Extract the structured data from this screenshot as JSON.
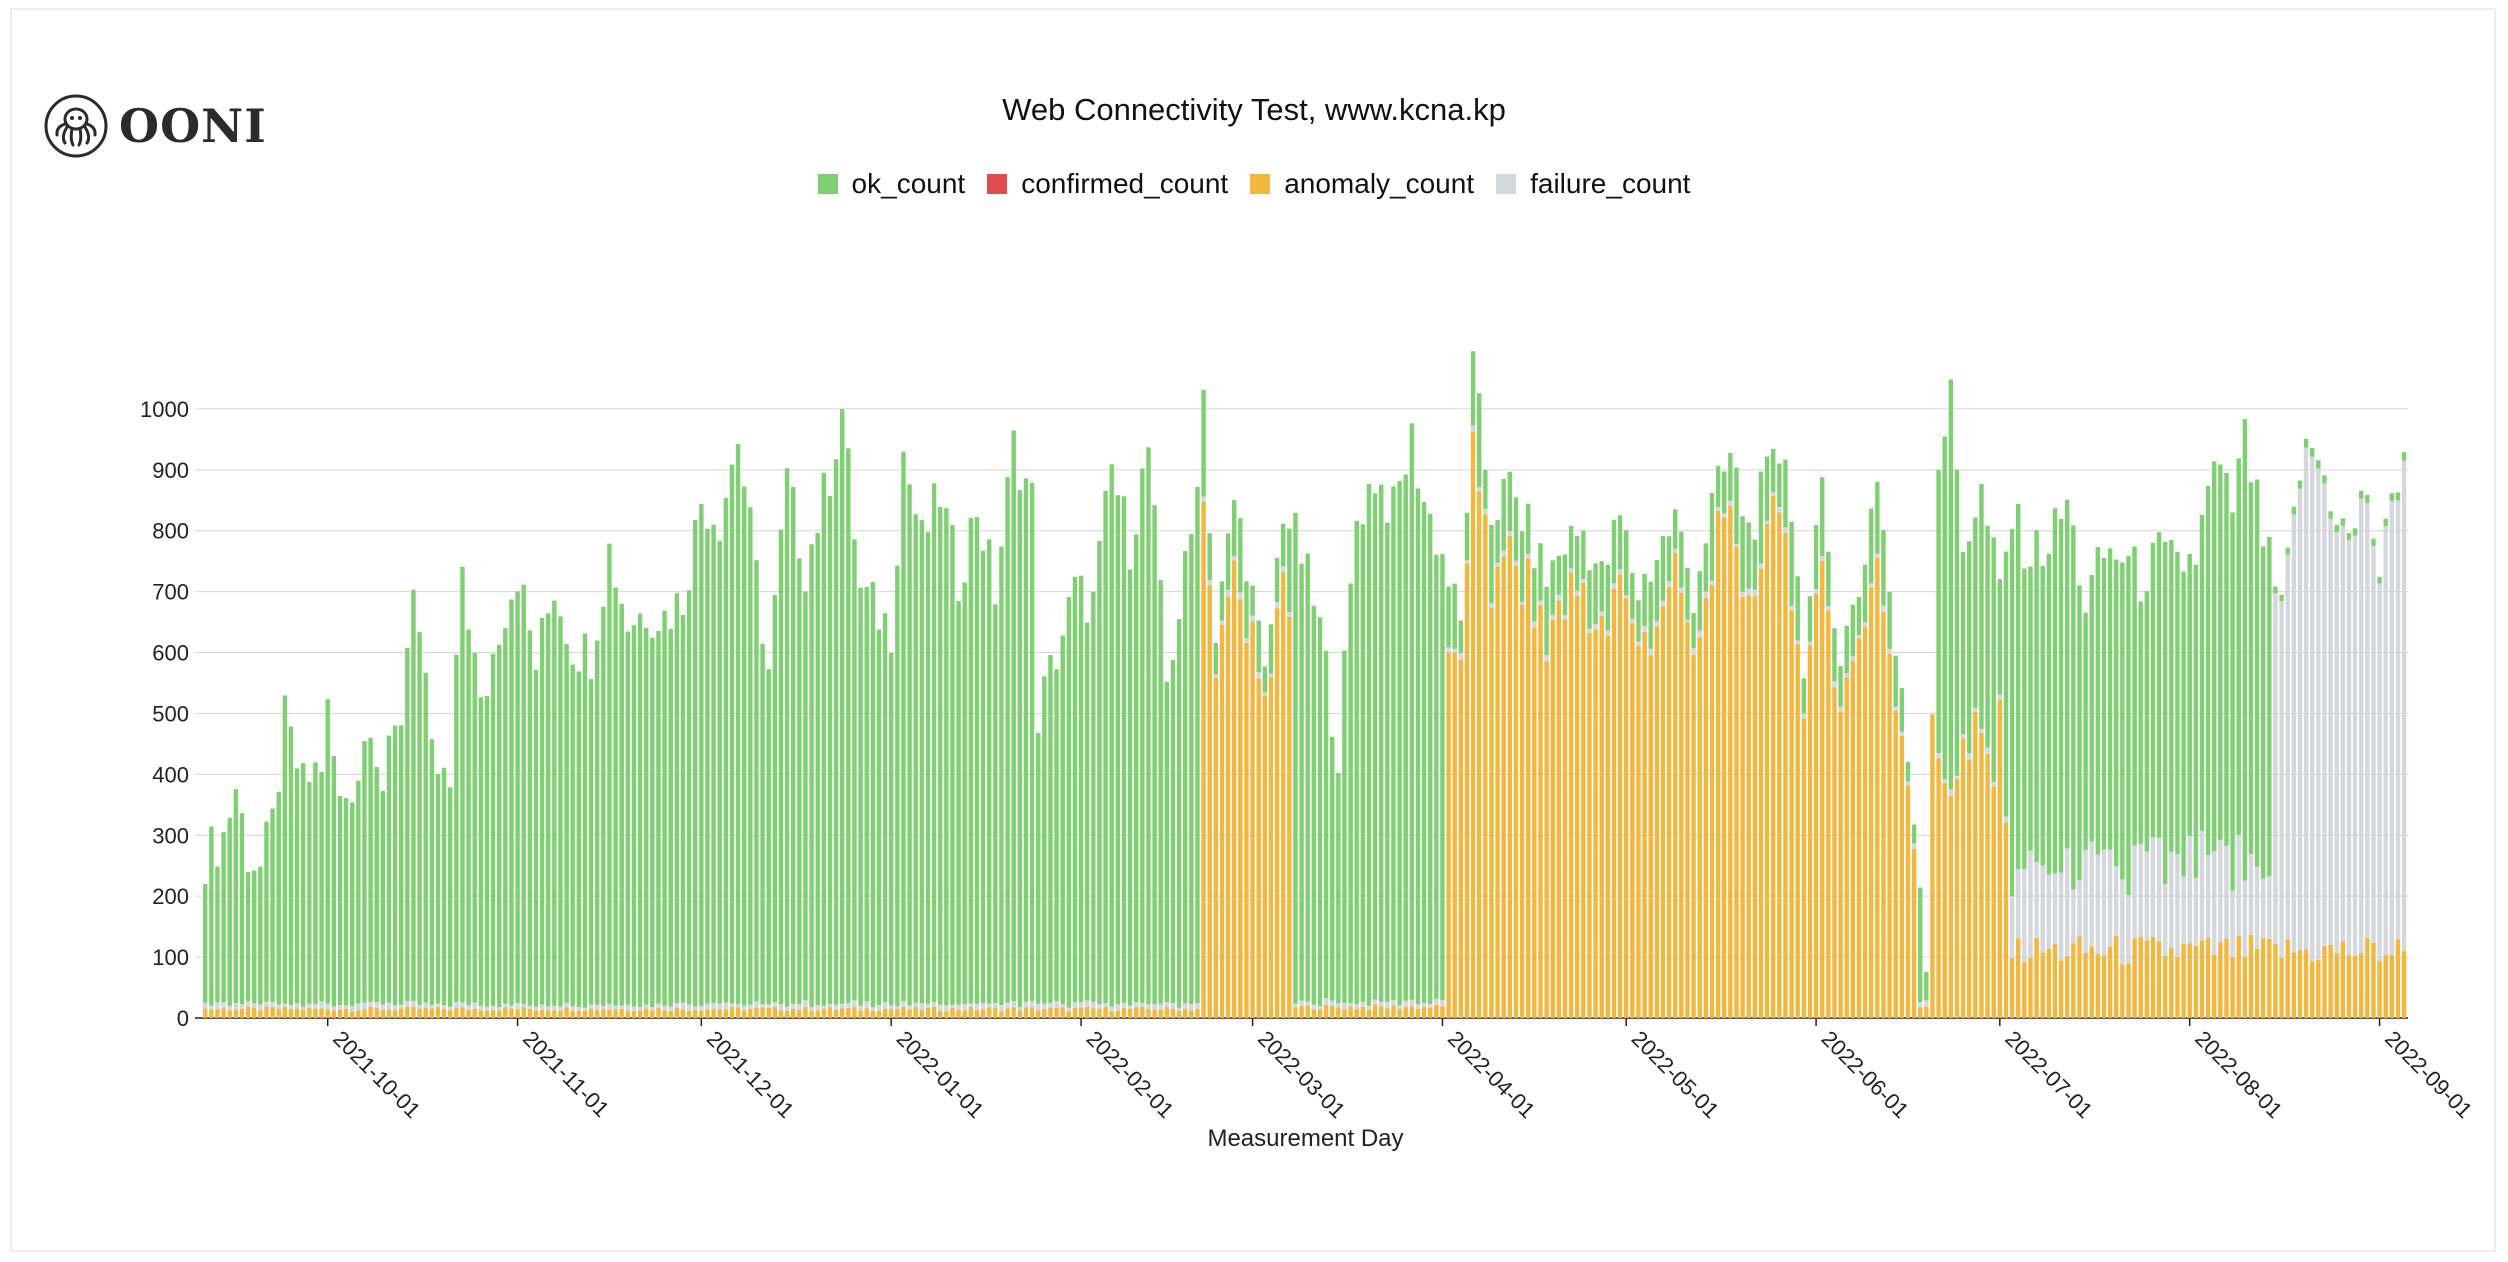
{
  "brand": {
    "name": "OONI",
    "icon": "octopus-icon"
  },
  "colors": {
    "ok_count": "#7fd073",
    "confirmed_count": "#e04b4b",
    "anomaly_count": "#f2b73f",
    "failure_count": "#d4d7dc",
    "grid": "#d6d6d6",
    "axis": "#222222"
  },
  "chart_data": {
    "type": "bar",
    "stacked": true,
    "title": "Web Connectivity Test, www.kcna.kp",
    "xlabel": "Measurement Day",
    "ylabel": "",
    "ylim": [
      0,
      1100
    ],
    "yticks": [
      0,
      100,
      200,
      300,
      400,
      500,
      600,
      700,
      800,
      900,
      1000
    ],
    "x_start": "2021-09-11",
    "x_end": "2022-09-05",
    "xticks": [
      "2021-10-01",
      "2021-11-01",
      "2021-12-01",
      "2022-01-01",
      "2022-02-01",
      "2022-03-01",
      "2022-04-01",
      "2022-05-01",
      "2022-06-01",
      "2022-07-01",
      "2022-08-01",
      "2022-09-01"
    ],
    "legend_position": "top-center",
    "grid": true,
    "series": [
      {
        "name": "ok_count"
      },
      {
        "name": "confirmed_count"
      },
      {
        "name": "anomaly_count"
      },
      {
        "name": "failure_count"
      }
    ],
    "daily_total_keypoints": [
      [
        "2021-09-11",
        265
      ],
      [
        "2021-09-14",
        300
      ],
      [
        "2021-09-16",
        380
      ],
      [
        "2021-09-18",
        270
      ],
      [
        "2021-09-20",
        245
      ],
      [
        "2021-09-22",
        315
      ],
      [
        "2021-09-24",
        485
      ],
      [
        "2021-09-27",
        380
      ],
      [
        "2021-09-30",
        420
      ],
      [
        "2021-10-01",
        500
      ],
      [
        "2021-10-03",
        350
      ],
      [
        "2021-10-06",
        405
      ],
      [
        "2021-10-08",
        505
      ],
      [
        "2021-10-10",
        380
      ],
      [
        "2021-10-13",
        500
      ],
      [
        "2021-10-15",
        730
      ],
      [
        "2021-10-18",
        420
      ],
      [
        "2021-10-21",
        370
      ],
      [
        "2021-10-23",
        745
      ],
      [
        "2021-10-26",
        500
      ],
      [
        "2021-10-29",
        645
      ],
      [
        "2021-11-01",
        735
      ],
      [
        "2021-11-04",
        580
      ],
      [
        "2021-11-07",
        710
      ],
      [
        "2021-11-10",
        610
      ],
      [
        "2021-11-13",
        600
      ],
      [
        "2021-11-16",
        770
      ],
      [
        "2021-11-19",
        650
      ],
      [
        "2021-11-22",
        670
      ],
      [
        "2021-11-25",
        660
      ],
      [
        "2021-11-28",
        690
      ],
      [
        "2021-12-01",
        850
      ],
      [
        "2021-12-04",
        820
      ],
      [
        "2021-12-07",
        955
      ],
      [
        "2021-12-09",
        800
      ],
      [
        "2021-12-12",
        570
      ],
      [
        "2021-12-15",
        880
      ],
      [
        "2021-12-18",
        740
      ],
      [
        "2021-12-22",
        895
      ],
      [
        "2021-12-24",
        1000
      ],
      [
        "2021-12-27",
        700
      ],
      [
        "2022-01-01",
        640
      ],
      [
        "2022-01-03",
        930
      ],
      [
        "2022-01-06",
        780
      ],
      [
        "2022-01-09",
        860
      ],
      [
        "2022-01-12",
        720
      ],
      [
        "2022-01-15",
        840
      ],
      [
        "2022-01-18",
        700
      ],
      [
        "2022-01-21",
        940
      ],
      [
        "2022-01-24",
        850
      ],
      [
        "2022-01-25",
        500
      ],
      [
        "2022-01-28",
        600
      ],
      [
        "2022-01-31",
        700
      ],
      [
        "2022-02-03",
        680
      ],
      [
        "2022-02-06",
        900
      ],
      [
        "2022-02-09",
        780
      ],
      [
        "2022-02-12",
        935
      ],
      [
        "2022-02-15",
        550
      ],
      [
        "2022-02-19",
        790
      ],
      [
        "2022-02-21",
        1030
      ],
      [
        "2022-02-23",
        620
      ],
      [
        "2022-02-26",
        850
      ],
      [
        "2022-02-28",
        760
      ],
      [
        "2022-03-03",
        550
      ],
      [
        "2022-03-06",
        840
      ],
      [
        "2022-03-09",
        760
      ],
      [
        "2022-03-12",
        640
      ],
      [
        "2022-03-15",
        440
      ],
      [
        "2022-03-18",
        820
      ],
      [
        "2022-03-21",
        890
      ],
      [
        "2022-03-24",
        830
      ],
      [
        "2022-03-27",
        950
      ],
      [
        "2022-03-29",
        850
      ],
      [
        "2022-04-01",
        760
      ],
      [
        "2022-04-04",
        640
      ],
      [
        "2022-04-06",
        1060
      ],
      [
        "2022-04-09",
        830
      ],
      [
        "2022-04-12",
        870
      ],
      [
        "2022-04-15",
        800
      ],
      [
        "2022-04-18",
        720
      ],
      [
        "2022-04-21",
        780
      ],
      [
        "2022-04-24",
        800
      ],
      [
        "2022-04-27",
        720
      ],
      [
        "2022-04-30",
        820
      ],
      [
        "2022-05-03",
        700
      ],
      [
        "2022-05-06",
        760
      ],
      [
        "2022-05-09",
        820
      ],
      [
        "2022-05-12",
        700
      ],
      [
        "2022-05-15",
        840
      ],
      [
        "2022-05-18",
        920
      ],
      [
        "2022-05-21",
        800
      ],
      [
        "2022-05-24",
        880
      ],
      [
        "2022-05-27",
        945
      ],
      [
        "2022-05-30",
        600
      ],
      [
        "2022-06-02",
        850
      ],
      [
        "2022-06-05",
        600
      ],
      [
        "2022-06-08",
        700
      ],
      [
        "2022-06-11",
        900
      ],
      [
        "2022-06-14",
        600
      ],
      [
        "2022-06-17",
        340
      ],
      [
        "2022-06-19",
        110
      ],
      [
        "2022-06-21",
        920
      ],
      [
        "2022-06-23",
        1015
      ],
      [
        "2022-06-25",
        780
      ],
      [
        "2022-06-28",
        860
      ],
      [
        "2022-07-01",
        700
      ],
      [
        "2022-07-03",
        820
      ],
      [
        "2022-07-06",
        760
      ],
      [
        "2022-07-09",
        780
      ],
      [
        "2022-07-12",
        845
      ],
      [
        "2022-07-15",
        680
      ],
      [
        "2022-07-18",
        760
      ],
      [
        "2022-07-21",
        760
      ],
      [
        "2022-07-24",
        720
      ],
      [
        "2022-07-27",
        760
      ],
      [
        "2022-07-30",
        740
      ],
      [
        "2022-08-02",
        760
      ],
      [
        "2022-08-05",
        900
      ],
      [
        "2022-08-08",
        840
      ],
      [
        "2022-08-10",
        950
      ],
      [
        "2022-08-13",
        790
      ],
      [
        "2022-08-16",
        660
      ],
      [
        "2022-08-19",
        900
      ],
      [
        "2022-08-21",
        940
      ],
      [
        "2022-08-24",
        860
      ],
      [
        "2022-08-27",
        780
      ],
      [
        "2022-08-30",
        870
      ],
      [
        "2022-09-01",
        730
      ],
      [
        "2022-09-03",
        840
      ],
      [
        "2022-09-05",
        940
      ]
    ],
    "anomaly_periods": [
      {
        "start": "2021-09-11",
        "end": "2022-02-20",
        "level": 15
      },
      {
        "start": "2022-02-21",
        "end": "2022-03-07",
        "level": "near_total"
      },
      {
        "start": "2022-03-08",
        "end": "2022-04-01",
        "level": 18
      },
      {
        "start": "2022-04-02",
        "end": "2022-06-17",
        "level": "near_total"
      },
      {
        "start": "2022-06-18",
        "end": "2022-06-19",
        "level": 20
      },
      {
        "start": "2022-06-20",
        "end": "2022-07-02",
        "level": 420
      },
      {
        "start": "2022-07-03",
        "end": "2022-09-05",
        "level": 110
      }
    ],
    "failure_periods": [
      {
        "start": "2021-09-11",
        "end": "2022-07-02",
        "level": 8
      },
      {
        "start": "2022-07-03",
        "end": "2022-08-14",
        "level": 130
      },
      {
        "start": "2022-08-15",
        "end": "2022-09-05",
        "level": "near_total"
      }
    ]
  }
}
